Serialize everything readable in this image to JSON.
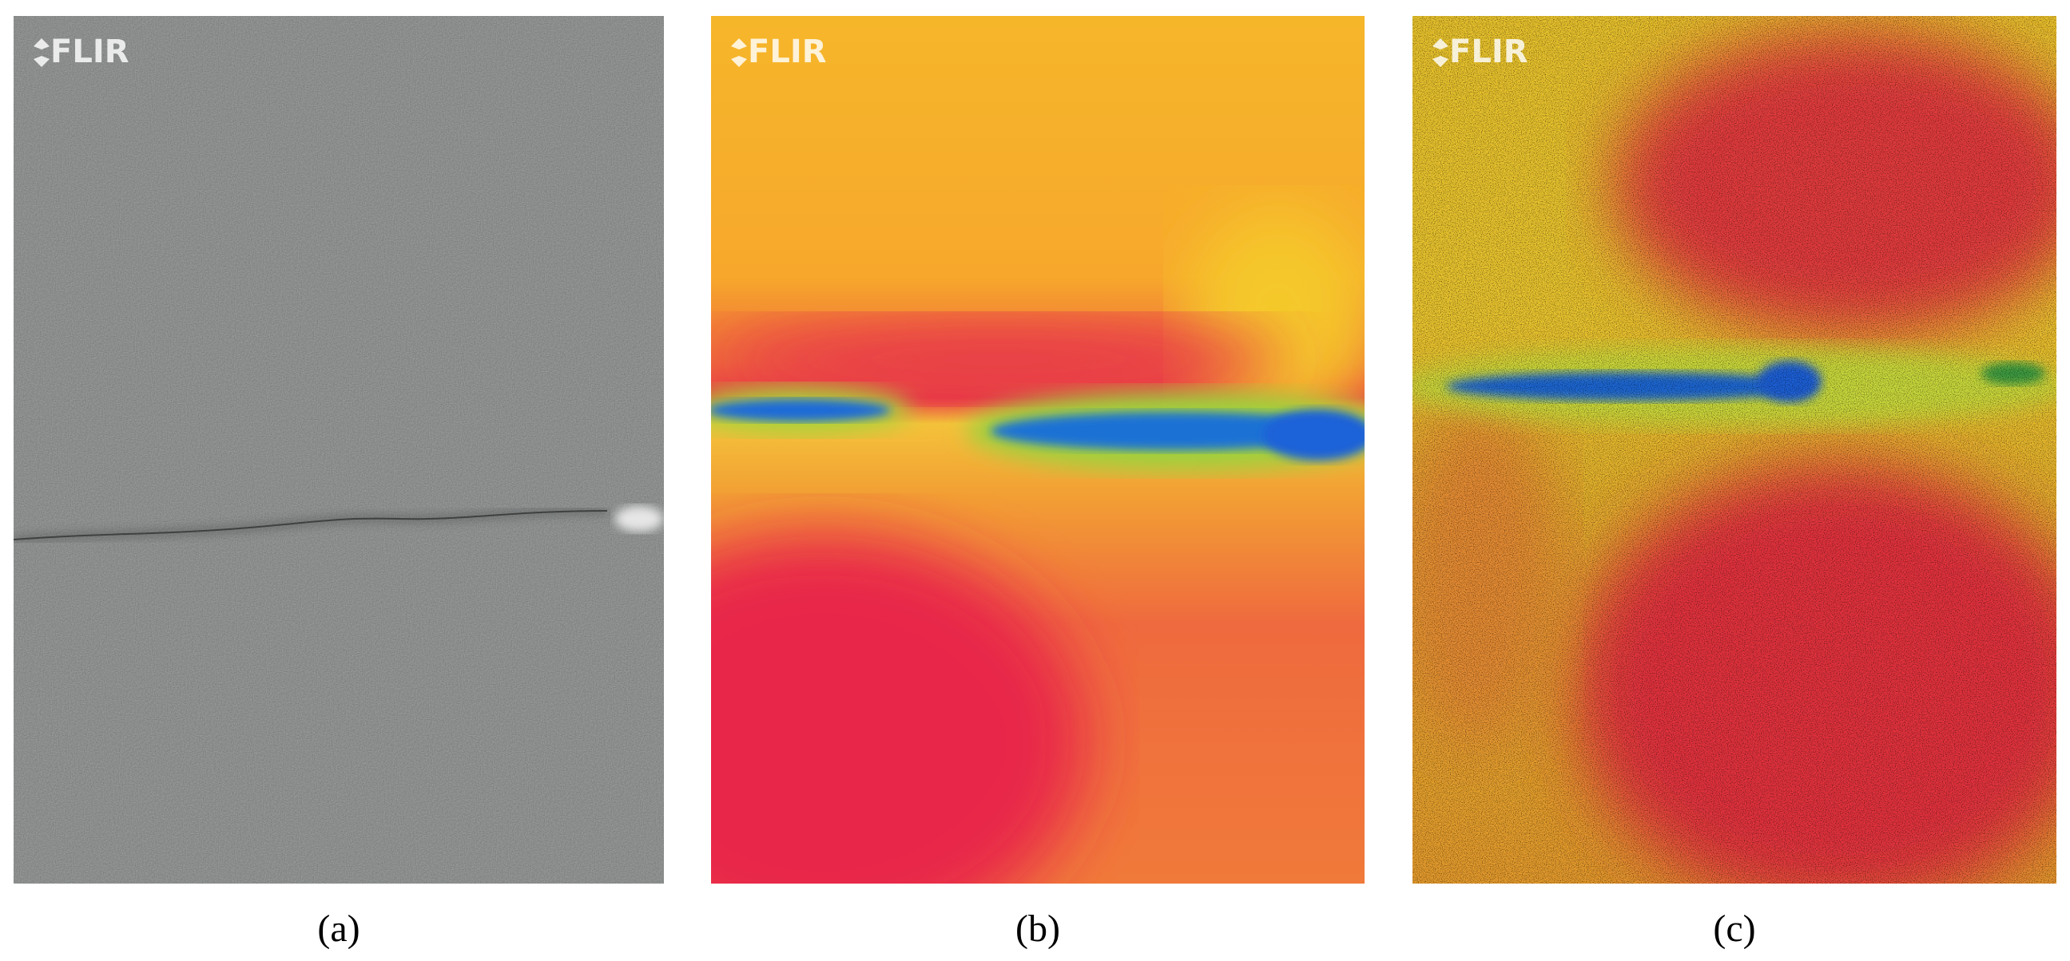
{
  "panels": [
    {
      "watermark": "FLIR",
      "label": "(a)"
    },
    {
      "watermark": "FLIR",
      "label": "(b)"
    },
    {
      "watermark": "FLIR",
      "label": "(c)"
    }
  ]
}
